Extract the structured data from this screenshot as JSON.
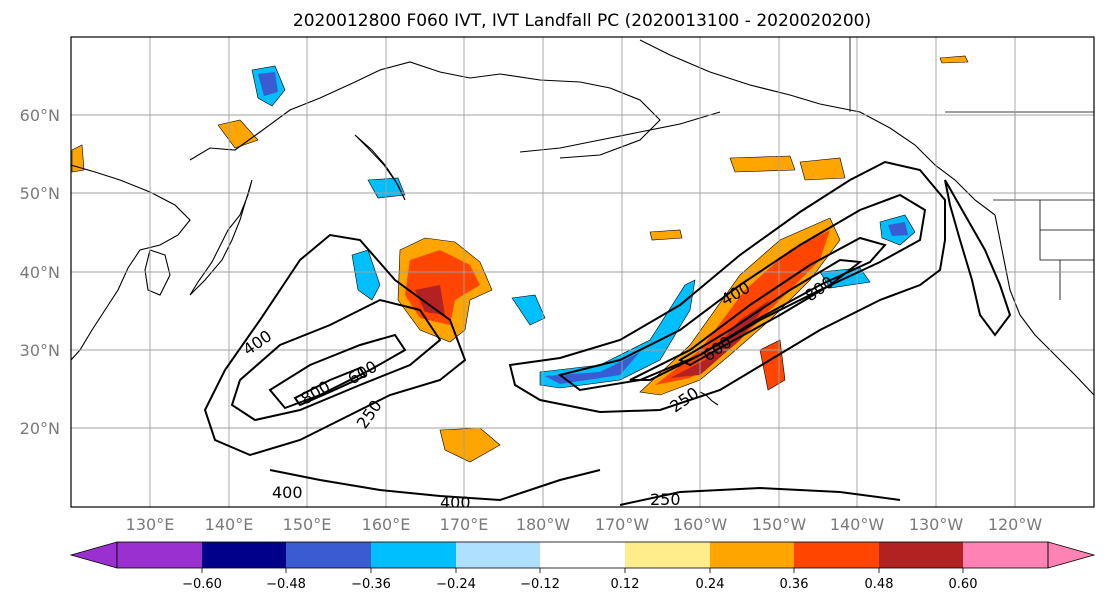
{
  "map": {
    "title": "2020012800 F060 IVT, IVT Landfall PC (2020013100 - 2020020200)",
    "lon_ticks": [
      "130°E",
      "140°E",
      "150°E",
      "160°E",
      "170°E",
      "180°W",
      "170°W",
      "160°W",
      "150°W",
      "140°W",
      "130°W",
      "120°W"
    ],
    "lat_ticks": [
      "60°N",
      "50°N",
      "40°N",
      "30°N",
      "20°N"
    ],
    "contour_labels": [
      "400",
      "800",
      "600",
      "250",
      "400",
      "400",
      "400",
      "800",
      "600",
      "250",
      "250"
    ],
    "colorbar": {
      "ticks": [
        "−0.60",
        "−0.48",
        "−0.36",
        "−0.24",
        "−0.12",
        "0.12",
        "0.24",
        "0.36",
        "0.48",
        "0.60"
      ],
      "colors": [
        "#9b30d0",
        "#00008b",
        "#3a5bd1",
        "#00bfff",
        "#b0e0ff",
        "#ffffff",
        "#ffec8b",
        "#ffa500",
        "#ff4500",
        "#b22222",
        "#ff82b4"
      ]
    },
    "colors": {
      "coast": "#000000",
      "grid": "#a0a0a0",
      "contour": "#000000"
    }
  }
}
